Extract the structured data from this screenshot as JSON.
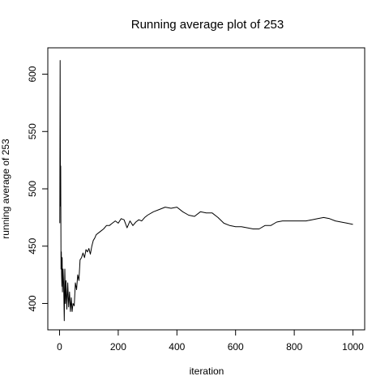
{
  "chart_data": {
    "type": "line",
    "title": "Running average plot of 253",
    "xlabel": "iteration",
    "ylabel": "running average of 253",
    "xlim": [
      -40,
      1040
    ],
    "ylim": [
      377,
      623
    ],
    "x_ticks": [
      0,
      200,
      400,
      600,
      800,
      1000
    ],
    "y_ticks": [
      400,
      450,
      500,
      550,
      600
    ],
    "x_tick_labels": [
      "0",
      "200",
      "400",
      "600",
      "800",
      "1000"
    ],
    "y_tick_labels": [
      "400",
      "450",
      "500",
      "550",
      "600"
    ],
    "grid": false,
    "series": [
      {
        "color": "#000000",
        "x": [
          1,
          2,
          3,
          4,
          5,
          6,
          7,
          8,
          9,
          10,
          12,
          14,
          16,
          18,
          20,
          22,
          25,
          28,
          31,
          34,
          37,
          40,
          43,
          46,
          50,
          54,
          58,
          62,
          66,
          70,
          75,
          80,
          85,
          90,
          95,
          100,
          105,
          110,
          115,
          120,
          125,
          130,
          140,
          150,
          160,
          170,
          180,
          190,
          200,
          210,
          220,
          230,
          240,
          250,
          260,
          270,
          280,
          290,
          300,
          320,
          340,
          360,
          380,
          400,
          420,
          440,
          460,
          480,
          500,
          520,
          540,
          560,
          580,
          600,
          620,
          640,
          660,
          680,
          700,
          720,
          740,
          760,
          780,
          800,
          820,
          840,
          860,
          880,
          900,
          920,
          940,
          960,
          980,
          1000
        ],
        "values": [
          470,
          612,
          485,
          520,
          430,
          445,
          425,
          415,
          440,
          410,
          430,
          418,
          385,
          430,
          400,
          420,
          395,
          418,
          397,
          410,
          393,
          405,
          393,
          400,
          398,
          418,
          412,
          425,
          420,
          438,
          440,
          444,
          440,
          447,
          445,
          448,
          443,
          450,
          455,
          457,
          460,
          461,
          463,
          465,
          468,
          468,
          470,
          472,
          470,
          474,
          473,
          466,
          472,
          468,
          471,
          473,
          472,
          475,
          477,
          480,
          482,
          484,
          483,
          484,
          480,
          477,
          476,
          480,
          479,
          479,
          475,
          470,
          468,
          467,
          467,
          466,
          465,
          465,
          468,
          468,
          471,
          472,
          472,
          472,
          472,
          472,
          473,
          474,
          475,
          474,
          472,
          471,
          470,
          469
        ]
      }
    ]
  }
}
